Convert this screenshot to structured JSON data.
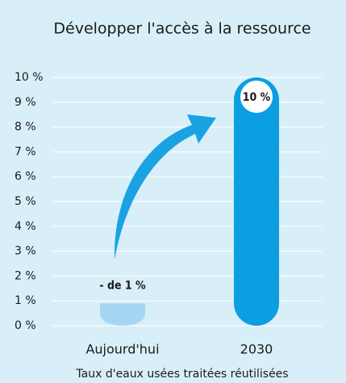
{
  "chart_data": {
    "type": "bar",
    "title": "Développer l'accès à la ressource",
    "x_label": "Taux d'eaux usées traitées réutilisées",
    "categories": [
      "Aujourd'hui",
      "2030"
    ],
    "values": [
      0.9,
      10
    ],
    "value_labels": [
      "- de 1 %",
      "10 %"
    ],
    "colors": [
      "#a6d7f2",
      "#0b9ee0"
    ],
    "ylim": [
      0,
      10
    ],
    "yticks": [
      {
        "value": 0,
        "label": "0 %"
      },
      {
        "value": 1,
        "label": "1 %"
      },
      {
        "value": 2,
        "label": "2 %"
      },
      {
        "value": 3,
        "label": "3 %"
      },
      {
        "value": 4,
        "label": "4 %"
      },
      {
        "value": 5,
        "label": "5 %"
      },
      {
        "value": 6,
        "label": "6 %"
      },
      {
        "value": 7,
        "label": "7 %"
      },
      {
        "value": 8,
        "label": "8 %"
      },
      {
        "value": 9,
        "label": "9 %"
      },
      {
        "value": 10,
        "label": "10 %"
      }
    ],
    "grid": true
  }
}
